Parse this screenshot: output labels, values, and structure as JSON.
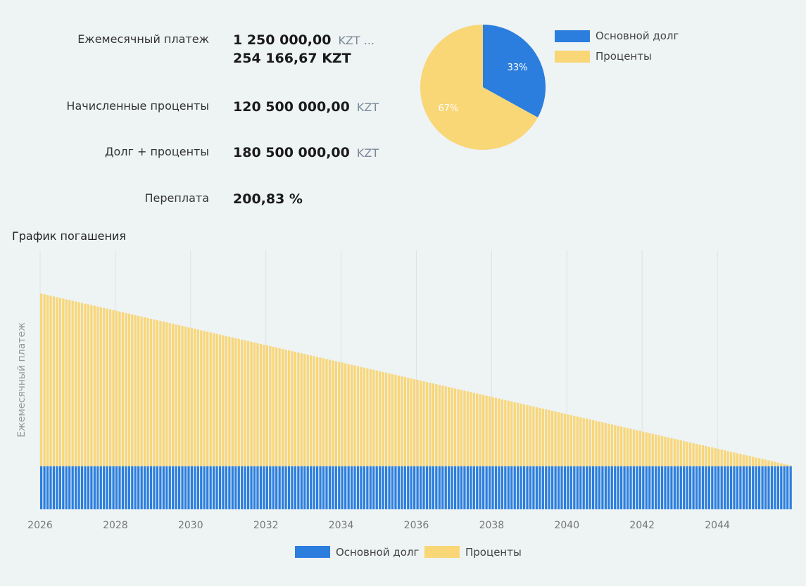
{
  "summary": {
    "monthly_payment": {
      "label": "Ежемесячный платеж",
      "value": "1 250 000,00",
      "currency": "KZT ...",
      "value2": "254 166,67 KZT"
    },
    "accrued_interest": {
      "label": "Начисленные проценты",
      "value": "120 500 000,00",
      "currency": "KZT"
    },
    "debt_plus_interest": {
      "label": "Долг + проценты",
      "value": "180 500 000,00",
      "currency": "KZT"
    },
    "overpayment": {
      "label": "Переплата",
      "value": "200,83 %"
    }
  },
  "colors": {
    "principal": "#2b7ede",
    "interest": "#f9d676",
    "grid": "#dde3e7",
    "axis_text": "#777777"
  },
  "chart_data": [
    {
      "type": "pie",
      "slices": [
        {
          "name": "Основной долг",
          "value": 33,
          "label": "33%"
        },
        {
          "name": "Проценты",
          "value": 67,
          "label": "67%"
        }
      ],
      "legend": [
        "Основной долг",
        "Проценты"
      ],
      "legend_position": "right"
    },
    {
      "type": "bar",
      "stacked": true,
      "title": "График погашения",
      "ylabel": "Ежемесячный платеж",
      "xlabel": "",
      "x_start_year": 2026,
      "n_months": 240,
      "x_ticks": [
        "2026",
        "2028",
        "2030",
        "2032",
        "2034",
        "2036",
        "2038",
        "2040",
        "2042",
        "2044"
      ],
      "ylim": [
        0,
        1500000
      ],
      "series": [
        {
          "name": "Основной долг",
          "first": 250000,
          "last": 250000
        },
        {
          "name": "Проценты",
          "first": 1000000,
          "last": 4166.67
        }
      ],
      "legend": [
        "Основной долг",
        "Проценты"
      ],
      "legend_position": "bottom"
    }
  ]
}
